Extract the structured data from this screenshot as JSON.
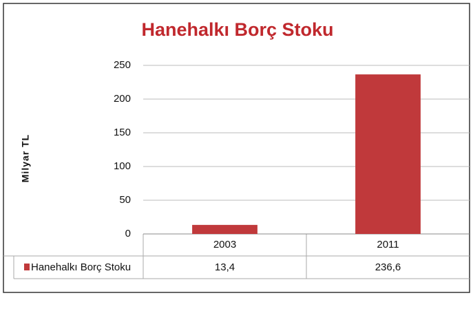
{
  "chart_data": {
    "type": "bar",
    "title": "Hanehalkı Borç Stoku",
    "y_label": "Milyar TL",
    "categories": [
      "2003",
      "2011"
    ],
    "series": [
      {
        "name": "Hanehalkı Borç Stoku",
        "color": "#c0393b",
        "values": [
          13.4,
          236.6
        ],
        "value_labels": [
          "13,4",
          "236,6"
        ]
      }
    ],
    "ylim": [
      0,
      250
    ],
    "yticks": [
      0,
      50,
      100,
      150,
      200,
      250
    ],
    "grid": true
  }
}
